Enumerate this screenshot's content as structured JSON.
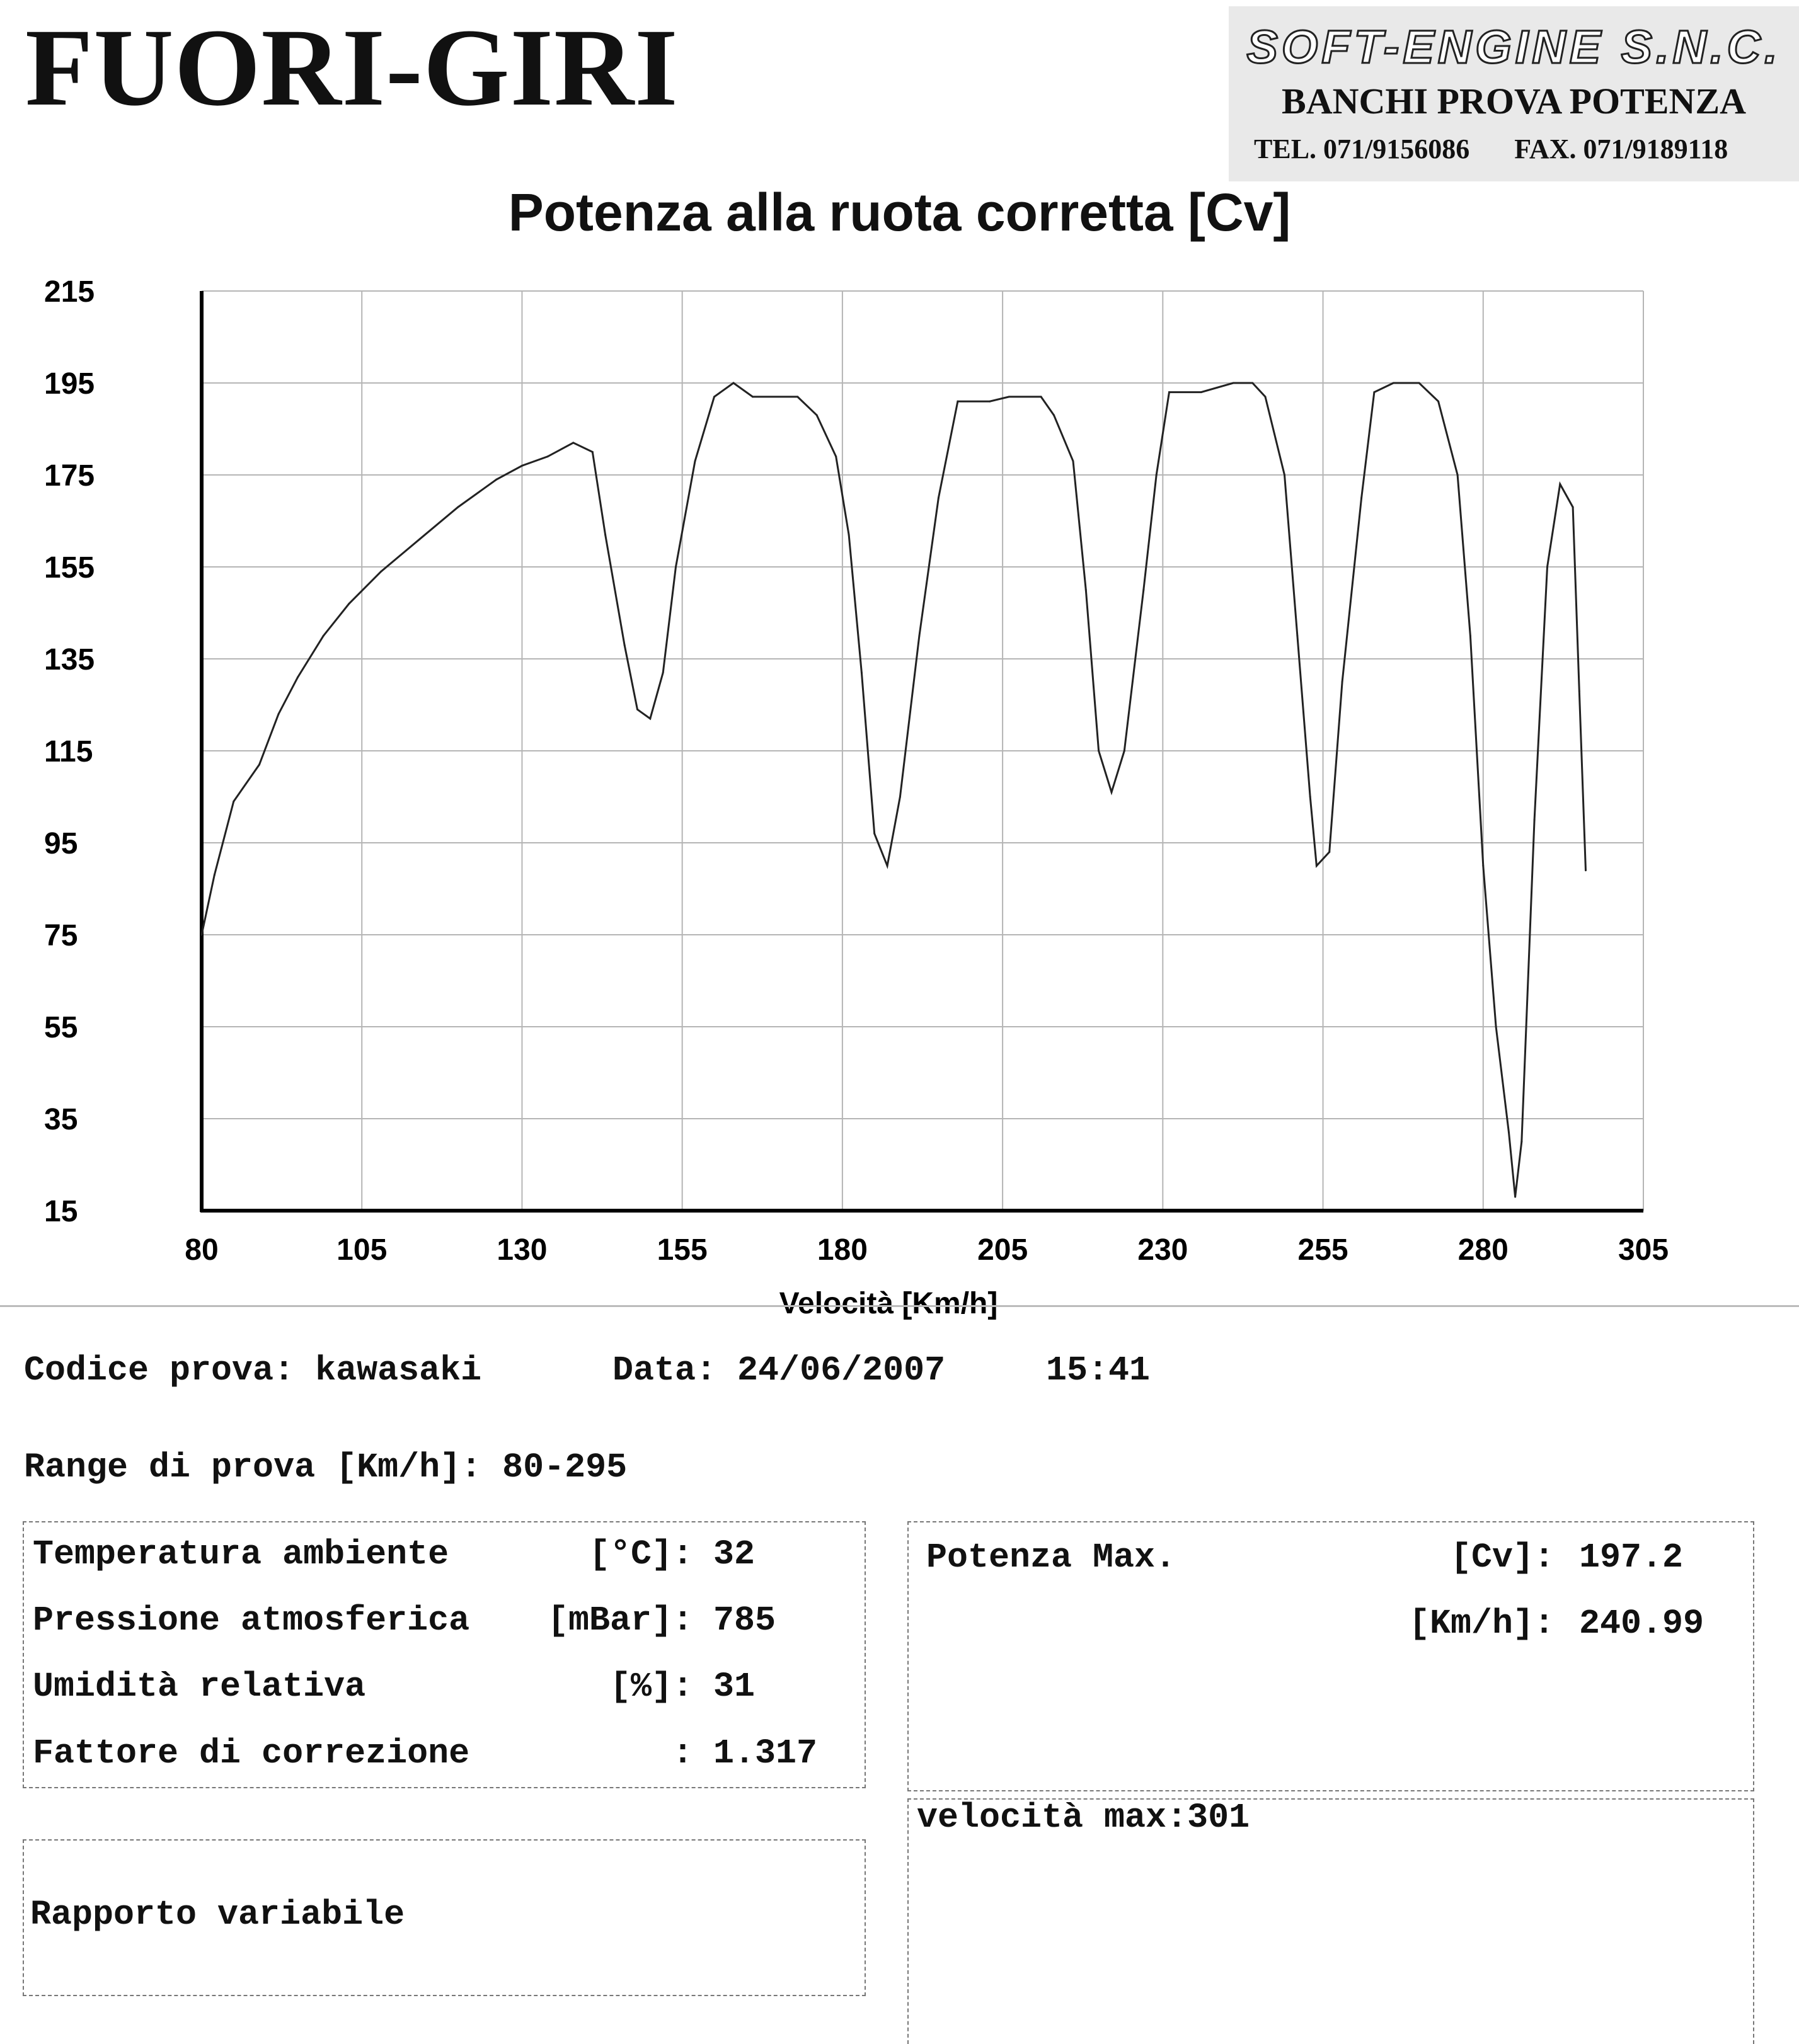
{
  "header": {
    "title": "FUORI-GIRI",
    "stamp_logo": "SOFT-ENGINE S.N.C.",
    "stamp_line": "BANCHI PROVA POTENZA",
    "stamp_tel": "TEL. 071/9156086",
    "stamp_fax": "FAX. 071/9189118"
  },
  "chart_data": {
    "type": "line",
    "title": "Potenza alla ruota corretta [Cv]",
    "xlabel": "Velocità [Km/h]",
    "ylabel": "",
    "xlim": [
      80,
      305
    ],
    "ylim": [
      15,
      215
    ],
    "xticks": [
      "80",
      "105",
      "130",
      "155",
      "180",
      "205",
      "230",
      "255",
      "280",
      "305"
    ],
    "yticks": [
      "215",
      "195",
      "175",
      "155",
      "135",
      "115",
      "95",
      "75",
      "55",
      "35",
      "15"
    ],
    "grid": true,
    "series": [
      {
        "values": [
          [
            80,
            75
          ],
          [
            82,
            88
          ],
          [
            85,
            104
          ],
          [
            89,
            112
          ],
          [
            92,
            123
          ],
          [
            95,
            131
          ],
          [
            99,
            140
          ],
          [
            103,
            147
          ],
          [
            108,
            154
          ],
          [
            114,
            161
          ],
          [
            120,
            168
          ],
          [
            126,
            174
          ],
          [
            130,
            177
          ],
          [
            134,
            179
          ],
          [
            138,
            182
          ],
          [
            141,
            180
          ],
          [
            143,
            162
          ],
          [
            146,
            138
          ],
          [
            148,
            124
          ],
          [
            150,
            122
          ],
          [
            152,
            132
          ],
          [
            154,
            155
          ],
          [
            157,
            178
          ],
          [
            160,
            192
          ],
          [
            163,
            195
          ],
          [
            166,
            192
          ],
          [
            173,
            192
          ],
          [
            176,
            188
          ],
          [
            179,
            179
          ],
          [
            181,
            162
          ],
          [
            183,
            132
          ],
          [
            185,
            97
          ],
          [
            187,
            90
          ],
          [
            189,
            105
          ],
          [
            192,
            140
          ],
          [
            195,
            170
          ],
          [
            198,
            191
          ],
          [
            203,
            191
          ],
          [
            206,
            192
          ],
          [
            211,
            192
          ],
          [
            213,
            188
          ],
          [
            216,
            178
          ],
          [
            218,
            150
          ],
          [
            220,
            115
          ],
          [
            222,
            106
          ],
          [
            224,
            115
          ],
          [
            227,
            150
          ],
          [
            229,
            175
          ],
          [
            231,
            193
          ],
          [
            236,
            193
          ],
          [
            241,
            195
          ],
          [
            244,
            195
          ],
          [
            246,
            192
          ],
          [
            249,
            175
          ],
          [
            251,
            140
          ],
          [
            253,
            105
          ],
          [
            254,
            90
          ],
          [
            256,
            93
          ],
          [
            258,
            130
          ],
          [
            261,
            170
          ],
          [
            263,
            193
          ],
          [
            266,
            195
          ],
          [
            270,
            195
          ],
          [
            273,
            191
          ],
          [
            276,
            175
          ],
          [
            278,
            140
          ],
          [
            280,
            90
          ],
          [
            282,
            55
          ],
          [
            284,
            32
          ],
          [
            285,
            18
          ],
          [
            286,
            30
          ],
          [
            288,
            100
          ],
          [
            290,
            155
          ],
          [
            292,
            173
          ],
          [
            294,
            168
          ],
          [
            295,
            128
          ],
          [
            296,
            89
          ]
        ]
      }
    ]
  },
  "info": {
    "codice_label": "Codice prova:",
    "codice_value": "kawasaki",
    "data_label": "Data:",
    "data_value": "24/06/2007",
    "ora_value": "15:41",
    "range_label": "Range di prova [Km/h]:",
    "range_value": "80-295"
  },
  "conditions": {
    "temp_label": "Temperatura ambiente",
    "temp_unit": "[°C]:",
    "temp_value": "32",
    "press_label": "Pressione atmosferica",
    "press_unit": "[mBar]:",
    "press_value": "785",
    "hum_label": "Umidità relativa",
    "hum_unit": "[%]:",
    "hum_value": "31",
    "corr_label": "Fattore di correzione",
    "corr_unit": ":",
    "corr_value": "1.317"
  },
  "results": {
    "pmax_label": "Potenza Max.",
    "pmax_unit": "[Cv]:",
    "pmax_value": "197.2",
    "speed_unit": "[Km/h]:",
    "speed_value": "240.99",
    "vmax_text": "velocità max:301"
  },
  "notes": {
    "rapporto": "Rapporto variabile"
  }
}
